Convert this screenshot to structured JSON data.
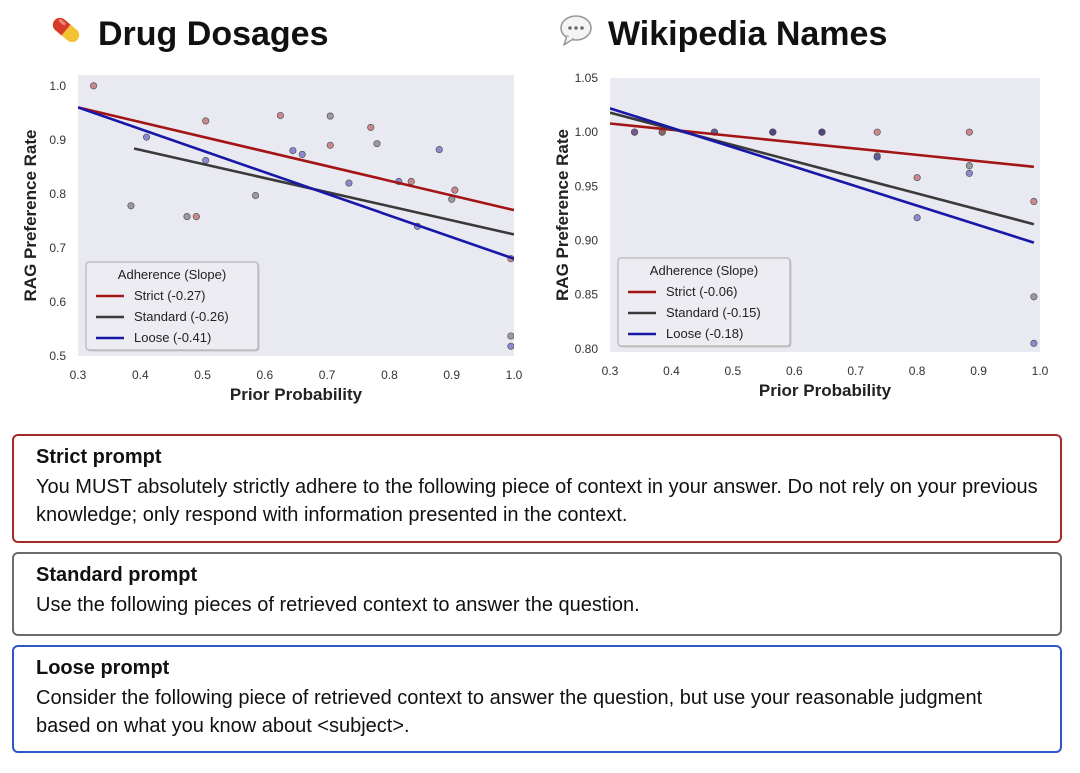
{
  "colors": {
    "strict": "#a31515",
    "standard": "#3a3a3a",
    "loose": "#1717a8",
    "plot_bg": "#e9e9f2",
    "strict_border": "#a62a2a",
    "standard_border": "#6b6b6b",
    "loose_border": "#2f56c4"
  },
  "chart_data": [
    {
      "type": "scatter",
      "title": "Drug Dosages",
      "icon": "pill-icon",
      "xlabel": "Prior Probability",
      "ylabel": "RAG Preference Rate",
      "xlim": [
        0.3,
        1.0
      ],
      "ylim": [
        0.5,
        1.02
      ],
      "xticks": [
        "0.3",
        "0.4",
        "0.5",
        "0.6",
        "0.7",
        "0.8",
        "0.9",
        "1.0"
      ],
      "yticks": [
        "0.5",
        "0.6",
        "0.7",
        "0.8",
        "0.9",
        "1.0"
      ],
      "legend": {
        "title": "Adherence (Slope)",
        "position": "bottom-left",
        "entries": [
          "Strict (-0.27)",
          "Standard (-0.26)",
          "Loose (-0.41)"
        ]
      },
      "lines": [
        {
          "name": "Strict",
          "x": [
            0.3,
            1.0
          ],
          "y": [
            0.96,
            0.77
          ]
        },
        {
          "name": "Standard",
          "x": [
            0.39,
            1.0
          ],
          "y": [
            0.884,
            0.725
          ]
        },
        {
          "name": "Loose",
          "x": [
            0.3,
            1.0
          ],
          "y": [
            0.96,
            0.68
          ]
        }
      ],
      "series": [
        {
          "name": "Strict",
          "points": [
            [
              0.325,
              1.0
            ],
            [
              0.49,
              0.758
            ],
            [
              0.505,
              0.935
            ],
            [
              0.625,
              0.945
            ],
            [
              0.705,
              0.89
            ],
            [
              0.77,
              0.923
            ],
            [
              0.835,
              0.823
            ],
            [
              0.905,
              0.807
            ],
            [
              0.995,
              0.68
            ]
          ]
        },
        {
          "name": "Standard",
          "points": [
            [
              0.385,
              0.778
            ],
            [
              0.475,
              0.758
            ],
            [
              0.585,
              0.797
            ],
            [
              0.705,
              0.944
            ],
            [
              0.78,
              0.893
            ],
            [
              0.9,
              0.79
            ],
            [
              0.995,
              0.537
            ]
          ]
        },
        {
          "name": "Loose",
          "points": [
            [
              0.41,
              0.905
            ],
            [
              0.505,
              0.862
            ],
            [
              0.645,
              0.88
            ],
            [
              0.66,
              0.873
            ],
            [
              0.735,
              0.82
            ],
            [
              0.815,
              0.823
            ],
            [
              0.845,
              0.74
            ],
            [
              0.88,
              0.882
            ],
            [
              0.995,
              0.518
            ]
          ]
        }
      ]
    },
    {
      "type": "scatter",
      "title": "Wikipedia Names",
      "icon": "speech-bubble-icon",
      "xlabel": "Prior Probability",
      "ylabel": "RAG Preference Rate",
      "xlim": [
        0.3,
        1.0
      ],
      "ylim": [
        0.797,
        1.05
      ],
      "xticks": [
        "0.3",
        "0.4",
        "0.5",
        "0.6",
        "0.7",
        "0.8",
        "0.9",
        "1.0"
      ],
      "yticks": [
        "0.80",
        "0.85",
        "0.90",
        "0.95",
        "1.00",
        "1.05"
      ],
      "legend": {
        "title": "Adherence (Slope)",
        "position": "bottom-left",
        "entries": [
          "Strict (-0.06)",
          "Standard (-0.15)",
          "Loose (-0.18)"
        ]
      },
      "lines": [
        {
          "name": "Strict",
          "x": [
            0.3,
            0.99
          ],
          "y": [
            1.008,
            0.968
          ]
        },
        {
          "name": "Standard",
          "x": [
            0.3,
            0.99
          ],
          "y": [
            1.018,
            0.915
          ]
        },
        {
          "name": "Loose",
          "x": [
            0.3,
            0.99
          ],
          "y": [
            1.022,
            0.898
          ]
        }
      ],
      "series": [
        {
          "name": "Strict",
          "points": [
            [
              0.34,
              1.0
            ],
            [
              0.385,
              1.0
            ],
            [
              0.565,
              1.0
            ],
            [
              0.645,
              1.0
            ],
            [
              0.735,
              1.0
            ],
            [
              0.8,
              0.958
            ],
            [
              0.885,
              1.0
            ],
            [
              0.99,
              0.936
            ]
          ]
        },
        {
          "name": "Standard",
          "points": [
            [
              0.385,
              1.0
            ],
            [
              0.47,
              1.0
            ],
            [
              0.565,
              1.0
            ],
            [
              0.645,
              1.0
            ],
            [
              0.735,
              0.978
            ],
            [
              0.885,
              0.969
            ],
            [
              0.99,
              0.848
            ]
          ]
        },
        {
          "name": "Loose",
          "points": [
            [
              0.34,
              1.0
            ],
            [
              0.47,
              1.0
            ],
            [
              0.565,
              1.0
            ],
            [
              0.645,
              1.0
            ],
            [
              0.735,
              0.977
            ],
            [
              0.8,
              0.921
            ],
            [
              0.885,
              0.962
            ],
            [
              0.99,
              0.805
            ]
          ]
        }
      ]
    }
  ],
  "prompts": [
    {
      "key": "strict",
      "title": "Strict prompt",
      "text": "You MUST absolutely strictly adhere to the following piece of context in your answer. Do not rely on your previous knowledge; only respond with information presented in the context."
    },
    {
      "key": "standard",
      "title": "Standard prompt",
      "text": "Use the following pieces of retrieved context to answer the question."
    },
    {
      "key": "loose",
      "title": "Loose prompt",
      "text": "Consider the following piece of retrieved context to answer the question, but use your reasonable judgment based on what you know about <subject>."
    }
  ]
}
